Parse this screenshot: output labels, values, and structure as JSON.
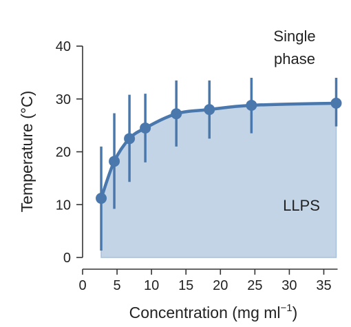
{
  "chart_data": {
    "type": "line",
    "xlabel": "Concentration (mg ml",
    "xlabel_superscript": "−1",
    "xlabel_close": ")",
    "ylabel": "Temperature (°C)",
    "xlim": [
      0,
      37
    ],
    "ylim": [
      0,
      40
    ],
    "x_ticks": [
      0,
      5,
      10,
      15,
      20,
      25,
      30,
      35
    ],
    "y_ticks": [
      0,
      10,
      20,
      30,
      40
    ],
    "grid": false,
    "annotations": {
      "upper_line1": "Single",
      "upper_line2": "phase",
      "lower": "LLPS"
    },
    "series": [
      {
        "x": [
          2.7,
          4.6,
          6.8,
          9.1,
          13.6,
          18.4,
          24.5,
          36.8
        ],
        "y": [
          11.2,
          18.2,
          22.5,
          24.5,
          27.2,
          28.0,
          28.8,
          29.2
        ],
        "y_lower": [
          1.3,
          9.2,
          14.3,
          18.0,
          21.0,
          22.5,
          23.5,
          24.8
        ],
        "y_upper": [
          21.0,
          27.3,
          30.8,
          31.0,
          33.5,
          33.5,
          34.0,
          34.0
        ]
      }
    ],
    "colors": {
      "line": "#4a78ad",
      "fill": "#c3d4e6",
      "fill_edge": "#a9c0da",
      "axis": "#333333"
    }
  }
}
